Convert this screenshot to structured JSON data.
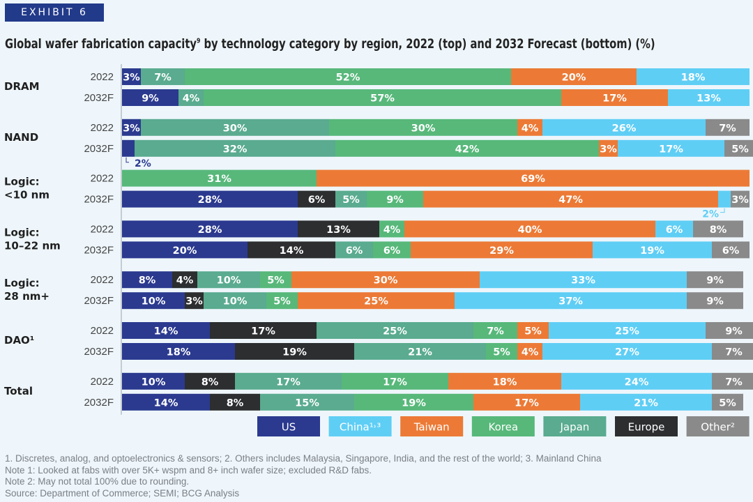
{
  "exhibit_label": "EXHIBIT 6",
  "title": {
    "main": "Global wafer fabrication capacity",
    "sup": "9",
    "rest": " by technology category by region, 2022 (top) and 2032 Forecast (bottom) (%)"
  },
  "colors": {
    "US": "#2b3a8f",
    "China": "#5fcef5",
    "Taiwan": "#ec7a36",
    "Korea": "#57b87a",
    "Japan": "#5aab8f",
    "Europe": "#2c2e30",
    "Other": "#8a8a8a"
  },
  "chart_data": {
    "type": "bar",
    "orientation": "horizontal",
    "stacked": true,
    "unit": "%",
    "legend": {
      "placement": "bottom",
      "entries": [
        {
          "key": "US",
          "label": "US"
        },
        {
          "key": "China",
          "label": "China¹˒³"
        },
        {
          "key": "Taiwan",
          "label": "Taiwan"
        },
        {
          "key": "Korea",
          "label": "Korea"
        },
        {
          "key": "Japan",
          "label": "Japan"
        },
        {
          "key": "Europe",
          "label": "Europe"
        },
        {
          "key": "Other",
          "label": "Other²"
        }
      ]
    },
    "groups": [
      {
        "label": "DRAM",
        "bars": [
          {
            "year": "2022",
            "segments": [
              {
                "region": "US",
                "value": 3,
                "label": "3%"
              },
              {
                "region": "Japan",
                "value": 7,
                "label": "7%"
              },
              {
                "region": "Korea",
                "value": 52,
                "label": "52%"
              },
              {
                "region": "Taiwan",
                "value": 20,
                "label": "20%"
              },
              {
                "region": "China",
                "value": 18,
                "label": "18%"
              }
            ]
          },
          {
            "year": "2032F",
            "segments": [
              {
                "region": "US",
                "value": 9,
                "label": "9%"
              },
              {
                "region": "Japan",
                "value": 4,
                "label": "4%"
              },
              {
                "region": "Korea",
                "value": 57,
                "label": "57%"
              },
              {
                "region": "Taiwan",
                "value": 17,
                "label": "17%"
              },
              {
                "region": "China",
                "value": 13,
                "label": "13%"
              }
            ]
          }
        ]
      },
      {
        "label": "NAND",
        "bars": [
          {
            "year": "2022",
            "segments": [
              {
                "region": "US",
                "value": 3,
                "label": "3%"
              },
              {
                "region": "Japan",
                "value": 30,
                "label": "30%"
              },
              {
                "region": "Korea",
                "value": 30,
                "label": "30%"
              },
              {
                "region": "Taiwan",
                "value": 4,
                "label": "4%"
              },
              {
                "region": "China",
                "value": 26,
                "label": "26%"
              },
              {
                "region": "Other",
                "value": 7,
                "label": "7%"
              }
            ]
          },
          {
            "year": "2032F",
            "segments": [
              {
                "region": "US",
                "value": 2,
                "label": "2%",
                "callout": "below"
              },
              {
                "region": "Japan",
                "value": 32,
                "label": "32%"
              },
              {
                "region": "Korea",
                "value": 42,
                "label": "42%"
              },
              {
                "region": "Taiwan",
                "value": 3,
                "label": "3%"
              },
              {
                "region": "China",
                "value": 17,
                "label": "17%"
              },
              {
                "region": "Other",
                "value": 5,
                "label": "5%"
              }
            ]
          }
        ]
      },
      {
        "label": "Logic:\n<10 nm",
        "bars": [
          {
            "year": "2022",
            "segments": [
              {
                "region": "US",
                "value": 0,
                "label": "0%"
              },
              {
                "region": "Korea",
                "value": 31,
                "label": "31%"
              },
              {
                "region": "Taiwan",
                "value": 69,
                "label": "69%"
              }
            ]
          },
          {
            "year": "2032F",
            "segments": [
              {
                "region": "US",
                "value": 28,
                "label": "28%"
              },
              {
                "region": "Europe",
                "value": 6,
                "label": "6%"
              },
              {
                "region": "Japan",
                "value": 5,
                "label": "5%"
              },
              {
                "region": "Korea",
                "value": 9,
                "label": "9%"
              },
              {
                "region": "Taiwan",
                "value": 47,
                "label": "47%"
              },
              {
                "region": "China",
                "value": 2,
                "label": "2%",
                "callout": "below"
              },
              {
                "region": "Other",
                "value": 3,
                "label": "3%"
              }
            ]
          }
        ]
      },
      {
        "label": "Logic:\n10–22 nm",
        "bars": [
          {
            "year": "2022",
            "segments": [
              {
                "region": "US",
                "value": 28,
                "label": "28%"
              },
              {
                "region": "Europe",
                "value": 13,
                "label": "13%"
              },
              {
                "region": "Korea",
                "value": 4,
                "label": "4%"
              },
              {
                "region": "Taiwan",
                "value": 40,
                "label": "40%"
              },
              {
                "region": "China",
                "value": 6,
                "label": "6%"
              },
              {
                "region": "Other",
                "value": 8,
                "label": "8%"
              }
            ]
          },
          {
            "year": "2032F",
            "segments": [
              {
                "region": "US",
                "value": 20,
                "label": "20%"
              },
              {
                "region": "Europe",
                "value": 14,
                "label": "14%"
              },
              {
                "region": "Japan",
                "value": 6,
                "label": "6%"
              },
              {
                "region": "Korea",
                "value": 6,
                "label": "6%"
              },
              {
                "region": "Taiwan",
                "value": 29,
                "label": "29%"
              },
              {
                "region": "China",
                "value": 19,
                "label": "19%"
              },
              {
                "region": "Other",
                "value": 6,
                "label": "6%"
              }
            ]
          }
        ]
      },
      {
        "label": "Logic:\n28 nm+",
        "bars": [
          {
            "year": "2022",
            "segments": [
              {
                "region": "US",
                "value": 8,
                "label": "8%"
              },
              {
                "region": "Europe",
                "value": 4,
                "label": "4%"
              },
              {
                "region": "Japan",
                "value": 10,
                "label": "10%"
              },
              {
                "region": "Korea",
                "value": 5,
                "label": "5%"
              },
              {
                "region": "Taiwan",
                "value": 30,
                "label": "30%"
              },
              {
                "region": "China",
                "value": 33,
                "label": "33%"
              },
              {
                "region": "Other",
                "value": 9,
                "label": "9%"
              }
            ]
          },
          {
            "year": "2032F",
            "segments": [
              {
                "region": "US",
                "value": 10,
                "label": "10%"
              },
              {
                "region": "Europe",
                "value": 3,
                "label": "3%"
              },
              {
                "region": "Japan",
                "value": 10,
                "label": "10%"
              },
              {
                "region": "Korea",
                "value": 5,
                "label": "5%"
              },
              {
                "region": "Taiwan",
                "value": 25,
                "label": "25%"
              },
              {
                "region": "China",
                "value": 37,
                "label": "37%"
              },
              {
                "region": "Other",
                "value": 9,
                "label": "9%"
              }
            ]
          }
        ]
      },
      {
        "label": "DAO¹",
        "bars": [
          {
            "year": "2022",
            "segments": [
              {
                "region": "US",
                "value": 14,
                "label": "14%"
              },
              {
                "region": "Europe",
                "value": 17,
                "label": "17%"
              },
              {
                "region": "Japan",
                "value": 25,
                "label": "25%"
              },
              {
                "region": "Korea",
                "value": 7,
                "label": "7%"
              },
              {
                "region": "Taiwan",
                "value": 5,
                "label": "5%"
              },
              {
                "region": "China",
                "value": 25,
                "label": "25%"
              },
              {
                "region": "Other",
                "value": 9,
                "label": "9%"
              }
            ]
          },
          {
            "year": "2032F",
            "segments": [
              {
                "region": "US",
                "value": 18,
                "label": "18%"
              },
              {
                "region": "Europe",
                "value": 19,
                "label": "19%"
              },
              {
                "region": "Japan",
                "value": 21,
                "label": "21%"
              },
              {
                "region": "Korea",
                "value": 5,
                "label": "5%"
              },
              {
                "region": "Taiwan",
                "value": 4,
                "label": "4%"
              },
              {
                "region": "China",
                "value": 27,
                "label": "27%"
              },
              {
                "region": "Other",
                "value": 7,
                "label": "7%"
              }
            ]
          }
        ]
      },
      {
        "label": "Total",
        "bars": [
          {
            "year": "2022",
            "segments": [
              {
                "region": "US",
                "value": 10,
                "label": "10%"
              },
              {
                "region": "Europe",
                "value": 8,
                "label": "8%"
              },
              {
                "region": "Japan",
                "value": 17,
                "label": "17%"
              },
              {
                "region": "Korea",
                "value": 17,
                "label": "17%"
              },
              {
                "region": "Taiwan",
                "value": 18,
                "label": "18%"
              },
              {
                "region": "China",
                "value": 24,
                "label": "24%"
              },
              {
                "region": "Other",
                "value": 7,
                "label": "7%"
              }
            ]
          },
          {
            "year": "2032F",
            "segments": [
              {
                "region": "US",
                "value": 14,
                "label": "14%"
              },
              {
                "region": "Europe",
                "value": 8,
                "label": "8%"
              },
              {
                "region": "Japan",
                "value": 15,
                "label": "15%"
              },
              {
                "region": "Korea",
                "value": 19,
                "label": "19%"
              },
              {
                "region": "Taiwan",
                "value": 17,
                "label": "17%"
              },
              {
                "region": "China",
                "value": 21,
                "label": "21%"
              },
              {
                "region": "Other",
                "value": 5,
                "label": "5%"
              }
            ]
          }
        ]
      }
    ]
  },
  "footnotes": [
    "1. Discretes, analog, and optoelectronics & sensors; 2. Others includes Malaysia, Singapore, India, and the rest of the world; 3. Mainland China",
    "Note 1: Looked at fabs with over 5K+ wspm and 8+ inch wafer size; excluded R&D fabs.",
    "Note 2: May not total 100% due to rounding.",
    "Source: Department of Commerce; SEMI; BCG Analysis"
  ]
}
